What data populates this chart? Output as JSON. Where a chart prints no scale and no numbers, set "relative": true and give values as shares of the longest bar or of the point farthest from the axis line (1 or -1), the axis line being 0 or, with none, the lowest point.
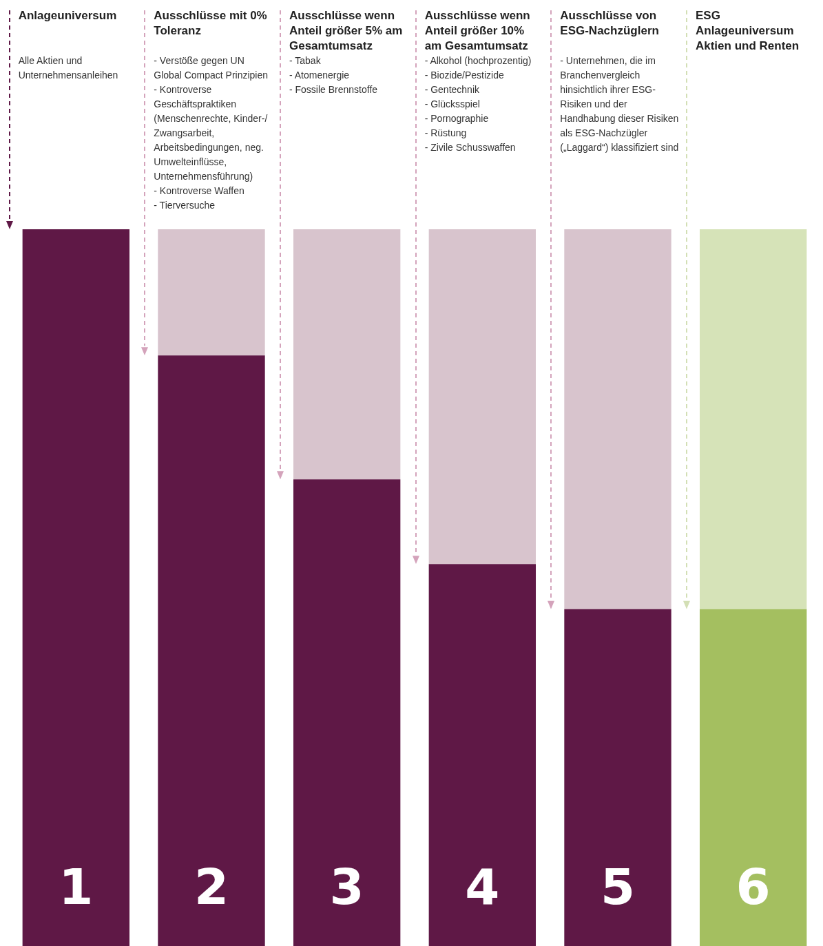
{
  "chart_data": {
    "type": "bar",
    "stacked": true,
    "relative": true,
    "legend": false,
    "tick_labels": false,
    "categories": [
      "1",
      "2",
      "3",
      "4",
      "5",
      "6"
    ],
    "series": [
      {
        "colors": [
          "#5f1846",
          "#5f1846",
          "#5f1846",
          "#5f1846",
          "#5f1846",
          "#a4bf60"
        ],
        "values": [
          1,
          0.824,
          0.651,
          0.533,
          0.47,
          0.47
        ]
      },
      {
        "colors": [
          "#d8c4cd",
          "#d8c4cd",
          "#d8c4cd",
          "#d8c4cd",
          "#d8c4cd",
          "#d6e3b8"
        ],
        "values": [
          0,
          0.176,
          0.349,
          0.467,
          0.53,
          0.53
        ]
      }
    ],
    "annotations": [
      "Anlageuniversum",
      "Ausschlüsse mit 0% Toleranz",
      "Ausschlüsse wenn Anteil größer 5% am Gesamtumsatz",
      "Ausschlüsse wenn Anteil größer 10% am Gesamtumsatz",
      "Ausschlüsse von ESG-Nachzüglern",
      "ESG Anlageuniversum Aktien und Renten",
      "Alle Aktien und Unternehmensanleihen",
      "- Verstöße gegen UN Global Compact Prinzipien\n- Kontroverse Geschäftspraktiken (Menschenrechte, Kinder-/ Zwangsarbeit, Arbeitsbedingungen, neg. Umwelteinflüsse, Unternehmensführung)\n- Kontroverse Waffen\n- Tierversuche",
      "- Tabak\n- Atomenergie\n- Fossile Brennstoffe",
      "- Alkohol (hochprozentig)\n- Biozide/Pestizide\n- Gentechnik\n- Glücksspiel\n- Pornographie\n- Rüstung\n- Zivile Schusswaffen",
      "- Unternehmen, die im Branchenvergleich hinsichtlich ihrer ESG-Risiken und der Handhabung dieser Risiken als ESG-Nachzügler („Laggard“) klassifiziert sind"
    ]
  }
}
